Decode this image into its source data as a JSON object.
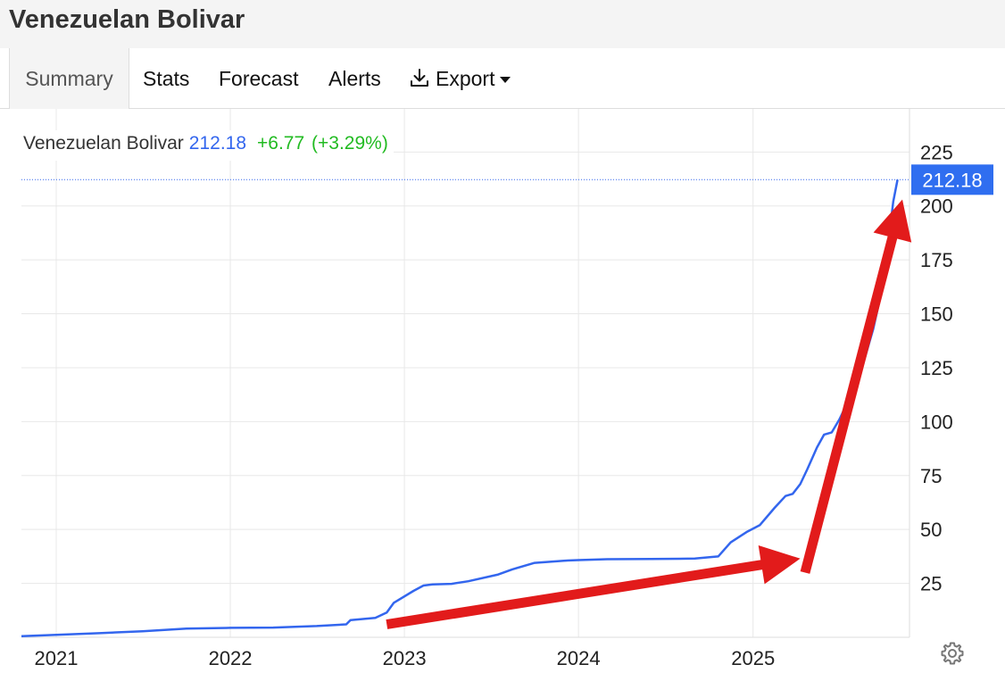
{
  "page_title": "Venezuelan Bolivar",
  "tabs": [
    {
      "label": "Summary",
      "active": true
    },
    {
      "label": "Stats"
    },
    {
      "label": "Forecast"
    },
    {
      "label": "Alerts"
    },
    {
      "label": "Export",
      "icon": "download-icon",
      "dropdown": true
    }
  ],
  "legend": {
    "name": "Venezuelan Bolivar",
    "value": "212.18",
    "change": "+6.77",
    "change_pct": "(+3.29%)"
  },
  "colors": {
    "line": "#3366ee",
    "up": "#22bb22",
    "last_value_bg": "#2f6ef0",
    "arrow": "#e21b1b",
    "grid": "#e8e8e8"
  },
  "chart_data": {
    "type": "line",
    "title": "",
    "xlabel": "",
    "ylabel": "",
    "x_ticks": [
      "2021",
      "2022",
      "2023",
      "2024",
      "2025"
    ],
    "y_ticks": [
      25,
      50,
      75,
      100,
      125,
      150,
      175,
      200,
      225
    ],
    "xlim": [
      "2020-10-20",
      "2025-11-25"
    ],
    "ylim": [
      0,
      245
    ],
    "grid": true,
    "last_value": "212.18",
    "series": [
      {
        "name": "Venezuelan Bolivar",
        "points": [
          [
            "2020-10-20",
            0.5
          ],
          [
            "2021-01-01",
            1.1
          ],
          [
            "2021-04-01",
            1.9
          ],
          [
            "2021-07-01",
            2.8
          ],
          [
            "2021-10-01",
            4.0
          ],
          [
            "2022-01-01",
            4.4
          ],
          [
            "2022-04-01",
            4.5
          ],
          [
            "2022-07-01",
            5.2
          ],
          [
            "2022-09-01",
            6.0
          ],
          [
            "2022-09-10",
            8.0
          ],
          [
            "2022-11-01",
            9.0
          ],
          [
            "2022-11-25",
            11.5
          ],
          [
            "2022-12-10",
            16.0
          ],
          [
            "2023-01-20",
            21.5
          ],
          [
            "2023-02-10",
            24.0
          ],
          [
            "2023-03-01",
            24.5
          ],
          [
            "2023-04-10",
            24.8
          ],
          [
            "2023-05-15",
            26.0
          ],
          [
            "2023-07-15",
            29.0
          ],
          [
            "2023-08-15",
            31.5
          ],
          [
            "2023-10-01",
            34.5
          ],
          [
            "2023-12-01",
            35.5
          ],
          [
            "2024-01-01",
            35.8
          ],
          [
            "2024-03-01",
            36.2
          ],
          [
            "2024-06-01",
            36.3
          ],
          [
            "2024-09-01",
            36.5
          ],
          [
            "2024-10-20",
            37.5
          ],
          [
            "2024-11-15",
            44.0
          ],
          [
            "2024-12-20",
            49.0
          ],
          [
            "2025-01-15",
            52.0
          ],
          [
            "2025-02-15",
            60.0
          ],
          [
            "2025-03-10",
            65.5
          ],
          [
            "2025-03-25",
            66.5
          ],
          [
            "2025-04-10",
            71.0
          ],
          [
            "2025-04-25",
            78.0
          ],
          [
            "2025-05-15",
            88.0
          ],
          [
            "2025-05-30",
            94.0
          ],
          [
            "2025-06-15",
            95.0
          ],
          [
            "2025-07-01",
            101.0
          ],
          [
            "2025-07-25",
            112.0
          ],
          [
            "2025-08-20",
            127.0
          ],
          [
            "2025-09-10",
            143.0
          ],
          [
            "2025-09-25",
            158.0
          ],
          [
            "2025-10-10",
            180.0
          ],
          [
            "2025-10-22",
            202.0
          ],
          [
            "2025-10-31",
            212.18
          ]
        ]
      }
    ],
    "annotations": [
      {
        "type": "arrow",
        "from": [
          "2022-11-25",
          6.0
        ],
        "to": [
          "2025-04-10",
          36.5
        ]
      },
      {
        "type": "arrow",
        "from": [
          "2025-04-20",
          30.0
        ],
        "to": [
          "2025-11-10",
          203.0
        ]
      }
    ]
  }
}
